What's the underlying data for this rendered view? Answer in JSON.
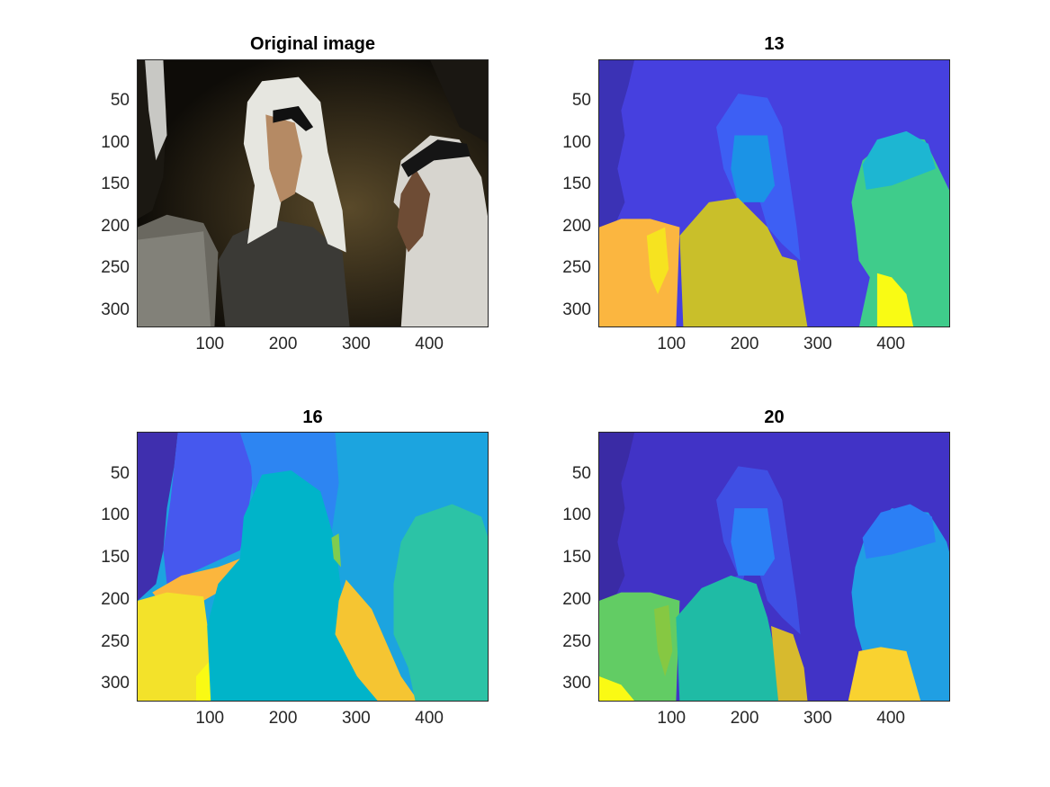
{
  "figure": {
    "panels": [
      {
        "id": "p1",
        "title": "Original image",
        "kind": "photo"
      },
      {
        "id": "p2",
        "title": "13",
        "kind": "segmentation"
      },
      {
        "id": "p3",
        "title": "16",
        "kind": "segmentation"
      },
      {
        "id": "p4",
        "title": "20",
        "kind": "segmentation"
      }
    ]
  },
  "chart_data": [
    {
      "type": "heatmap",
      "title": "Original image",
      "image_size": [
        481,
        321
      ],
      "xlim": [
        0,
        481
      ],
      "ylim": [
        321,
        0
      ],
      "xticks": [
        100,
        200,
        300,
        400
      ],
      "yticks": [
        50,
        100,
        150,
        200,
        250,
        300
      ],
      "content": "photograph"
    },
    {
      "type": "heatmap",
      "title": "13",
      "image_size": [
        481,
        321
      ],
      "xlim": [
        0,
        481
      ],
      "ylim": [
        321,
        0
      ],
      "xticks": [
        100,
        200,
        300,
        400
      ],
      "yticks": [
        50,
        100,
        150,
        200,
        250,
        300
      ],
      "colormap": "parula",
      "colors": {
        "bg": "#4640df",
        "c1": "#3b32b5",
        "c2": "#3d5ff4",
        "c3": "#1b93e6",
        "c4": "#1db6d2",
        "c5": "#3fcc8b",
        "c6": "#52c46a",
        "c7": "#c9bf2a",
        "c8": "#fbb640",
        "c9": "#f6e320",
        "c10": "#f9fb14"
      }
    },
    {
      "type": "heatmap",
      "title": "16",
      "image_size": [
        481,
        321
      ],
      "xlim": [
        0,
        481
      ],
      "ylim": [
        321,
        0
      ],
      "xticks": [
        100,
        200,
        300,
        400
      ],
      "yticks": [
        50,
        100,
        150,
        200,
        250,
        300
      ],
      "colormap": "parula",
      "colors": {
        "bg": "#1ca4df",
        "c1": "#3f2fae",
        "c2": "#4658ee",
        "c3": "#2d85f2",
        "c4": "#00b4c9",
        "c5": "#2cc3a6",
        "c6": "#f5c532",
        "c7": "#f3e22a",
        "c8": "#f9fa14",
        "c9": "#80cc4e",
        "c10": "#fbb63d"
      }
    },
    {
      "type": "heatmap",
      "title": "20",
      "image_size": [
        481,
        321
      ],
      "xlim": [
        0,
        481
      ],
      "ylim": [
        321,
        0
      ],
      "xticks": [
        100,
        200,
        300,
        400
      ],
      "yticks": [
        50,
        100,
        150,
        200,
        250,
        300
      ],
      "colormap": "parula",
      "colors": {
        "bg": "#4133c6",
        "c1": "#3a2ba5",
        "c2": "#3f4fe4",
        "c3": "#2b7ff5",
        "c4": "#209fe3",
        "c5": "#1fbba5",
        "c6": "#62cc64",
        "c7": "#86c842",
        "c8": "#d7ba2e",
        "c9": "#f9d230",
        "c10": "#fafa14"
      }
    }
  ]
}
